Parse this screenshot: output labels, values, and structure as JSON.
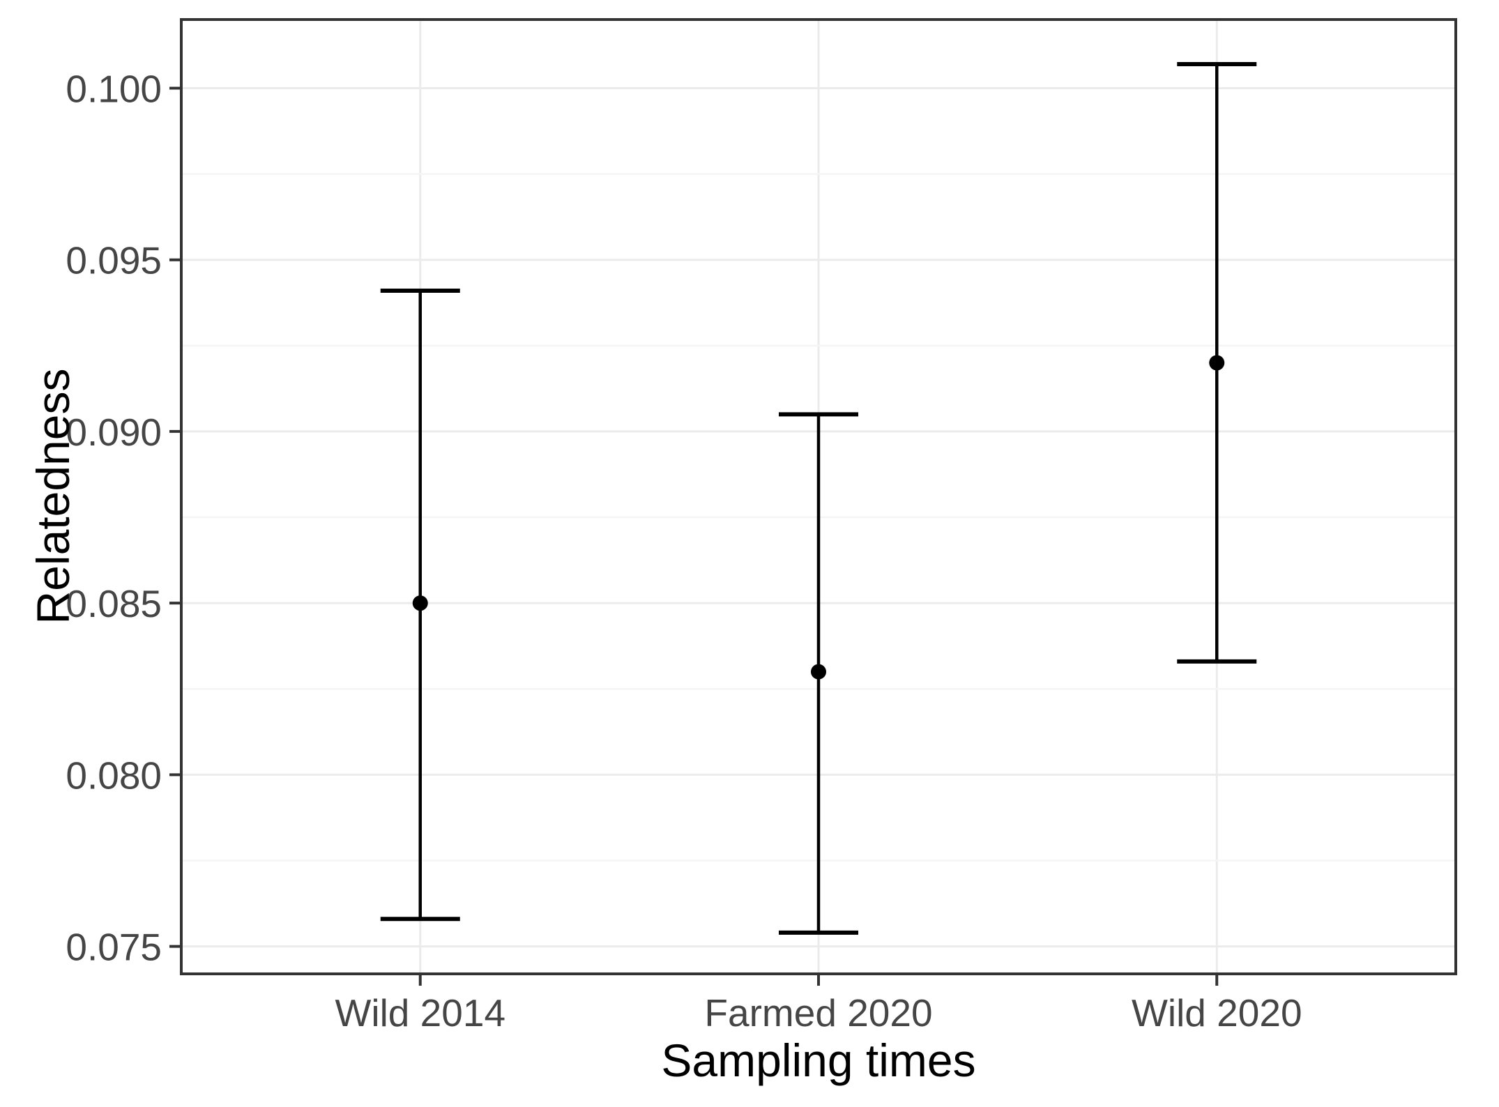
{
  "figure": {
    "background": "#ffffff"
  },
  "chart_data": {
    "type": "scatter",
    "subtype": "point-with-errorbars",
    "title": "",
    "xlabel": "Sampling times",
    "ylabel": "Relatedness",
    "categories": [
      "Wild 2014",
      "Farmed 2020",
      "Wild 2020"
    ],
    "series": [
      {
        "name": "Relatedness",
        "means": [
          0.085,
          0.083,
          0.092
        ],
        "lower": [
          0.0758,
          0.0754,
          0.0833
        ],
        "upper": [
          0.0941,
          0.0905,
          0.1007
        ]
      }
    ],
    "y_ticks": [
      0.075,
      0.08,
      0.085,
      0.09,
      0.095,
      0.1
    ],
    "y_tick_labels": [
      "0.075",
      "0.080",
      "0.085",
      "0.090",
      "0.095",
      "0.100"
    ],
    "ylim": [
      0.0742,
      0.102
    ],
    "grid": {
      "major_horizontal": true,
      "minor_horizontal": true,
      "vertical_at_categories": true
    },
    "legend_position": "none",
    "colors": {
      "point": "#000000",
      "errorbar": "#000000",
      "panel_border": "#333333",
      "grid_major": "#ebebeb",
      "grid_minor": "#f5f5f5",
      "tick_mark": "#333333",
      "tick_label": "#454545",
      "axis_title": "#000000",
      "panel_background": "#ffffff"
    }
  }
}
